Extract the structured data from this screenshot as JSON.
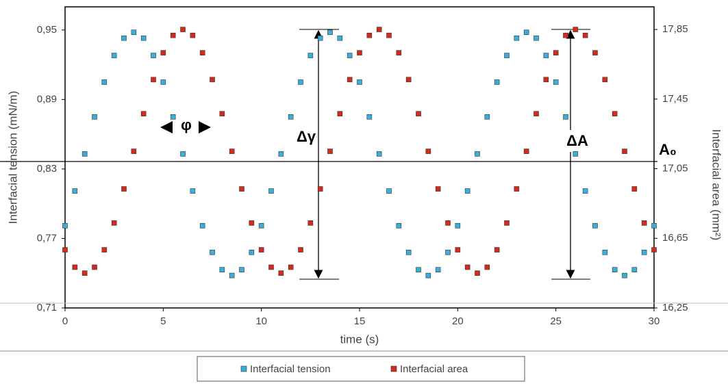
{
  "chart_data": {
    "type": "scatter",
    "xlabel": "time (s)",
    "ylabel": "Interfacial tension (mN/m)",
    "y2label": "Interfacial area (mm²)",
    "annotations": [
      "φ",
      "Δγ",
      "ΔA",
      "A₀"
    ],
    "x": [
      0,
      0.5,
      1,
      1.5,
      2,
      2.5,
      3,
      3.5,
      4,
      4.5,
      5,
      5.5,
      6,
      6.5,
      7,
      7.5,
      8,
      8.5,
      9,
      9.5,
      10,
      10.5,
      11,
      11.5,
      12,
      12.5,
      13,
      13.5,
      14,
      14.5,
      15,
      15.5,
      16,
      16.5,
      17,
      17.5,
      18,
      18.5,
      19,
      19.5,
      20,
      20.5,
      21,
      21.5,
      22,
      22.5,
      23,
      23.5,
      24,
      24.5,
      25,
      25.5,
      26,
      26.5,
      27,
      27.5,
      28,
      28.5,
      29,
      29.5,
      30
    ],
    "series": [
      {
        "name": "Interfacial tension",
        "color": "#3aaed8",
        "axis": "y",
        "values": [
          0.781,
          0.811,
          0.843,
          0.875,
          0.905,
          0.928,
          0.943,
          0.948,
          0.943,
          0.928,
          0.905,
          0.875,
          0.843,
          0.811,
          0.781,
          0.758,
          0.743,
          0.738,
          0.743,
          0.758,
          0.781,
          0.811,
          0.843,
          0.875,
          0.905,
          0.928,
          0.943,
          0.948,
          0.943,
          0.928,
          0.905,
          0.875,
          0.843,
          0.811,
          0.781,
          0.758,
          0.743,
          0.738,
          0.743,
          0.758,
          0.781,
          0.811,
          0.843,
          0.875,
          0.905,
          0.928,
          0.943,
          0.948,
          0.943,
          0.928,
          0.905,
          0.875,
          0.843,
          0.811,
          0.781,
          0.758,
          0.743,
          0.738,
          0.743,
          0.758,
          0.781
        ]
      },
      {
        "name": "Interfacial area",
        "color": "#d42a1c",
        "axis": "y2",
        "values": [
          16.584,
          16.484,
          16.45,
          16.484,
          16.584,
          16.738,
          16.934,
          17.15,
          17.366,
          17.562,
          17.716,
          17.816,
          17.85,
          17.816,
          17.716,
          17.562,
          17.366,
          17.15,
          16.934,
          16.738,
          16.584,
          16.484,
          16.45,
          16.484,
          16.584,
          16.738,
          16.934,
          17.15,
          17.366,
          17.562,
          17.716,
          17.816,
          17.85,
          17.816,
          17.716,
          17.562,
          17.366,
          17.15,
          16.934,
          16.738,
          16.584,
          16.484,
          16.45,
          16.484,
          16.584,
          16.738,
          16.934,
          17.15,
          17.366,
          17.562,
          17.716,
          17.816,
          17.85,
          17.816,
          17.716,
          17.562,
          17.366,
          17.15,
          16.934,
          16.738,
          16.584
        ]
      }
    ],
    "xlim": [
      0,
      30
    ],
    "xticks": [
      0,
      5,
      10,
      15,
      20,
      25,
      30
    ],
    "ylim": [
      0.71,
      0.97
    ],
    "yticks": [
      {
        "value": 0.71,
        "label": "0,71"
      },
      {
        "value": 0.77,
        "label": "0,77"
      },
      {
        "value": 0.83,
        "label": "0,83"
      },
      {
        "value": 0.89,
        "label": "0,89"
      },
      {
        "value": 0.95,
        "label": "0,95"
      }
    ],
    "y2lim": [
      16.25,
      17.98
    ],
    "y2ticks": [
      {
        "value": 16.25,
        "label": "16,25"
      },
      {
        "value": 16.65,
        "label": "16,65"
      },
      {
        "value": 17.05,
        "label": "17,05"
      },
      {
        "value": 17.45,
        "label": "17,45"
      },
      {
        "value": 17.85,
        "label": "17,85"
      }
    ],
    "legend": "bottom"
  }
}
